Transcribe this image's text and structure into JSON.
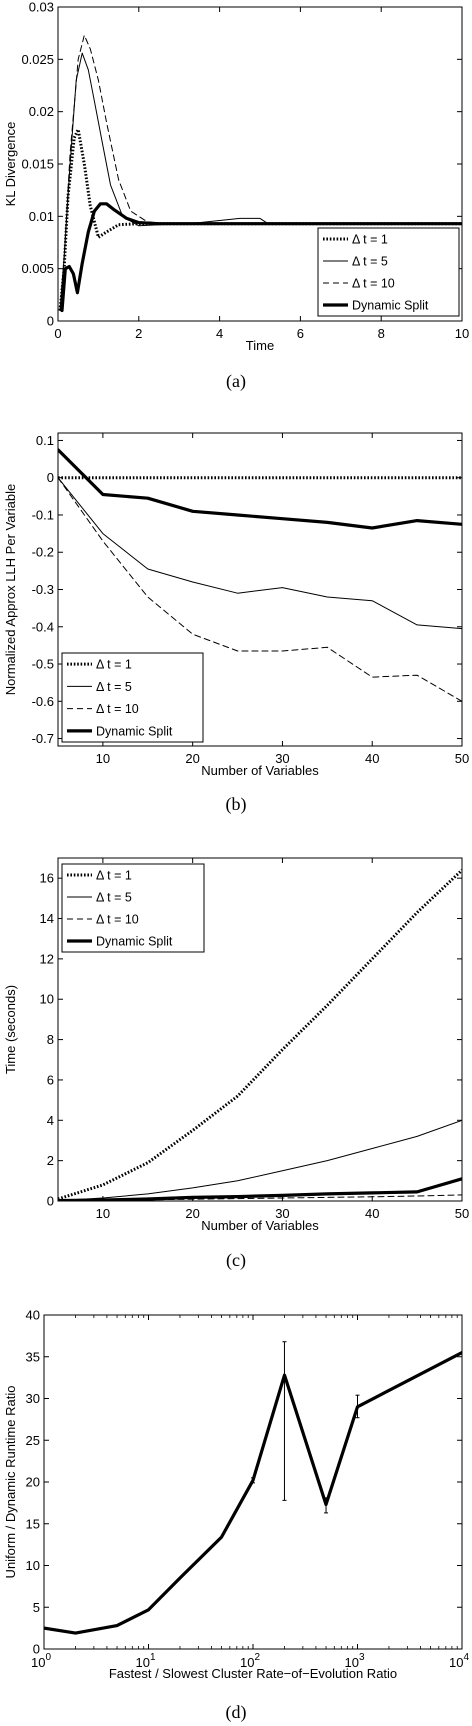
{
  "chart_data": [
    {
      "type": "line",
      "caption": "(a)",
      "xlabel": "Time",
      "ylabel": "KL Divergence",
      "xlim": [
        0,
        10
      ],
      "ylim": [
        0,
        0.03
      ],
      "xticks": [
        0,
        2,
        4,
        6,
        8,
        10
      ],
      "xticklabels": [
        "0",
        "2",
        "4",
        "6",
        "8",
        "10"
      ],
      "yticks": [
        0,
        0.005,
        0.01,
        0.015,
        0.02,
        0.025,
        0.03
      ],
      "yticklabels": [
        "0",
        "0.005",
        "0.01",
        "0.015",
        "0.02",
        "0.025",
        "0.03"
      ],
      "xscale": "linear",
      "legend": "bottom-right",
      "series": [
        {
          "name": "Δ t = 1",
          "style": "dotted",
          "width": 3,
          "x": [
            0.05,
            0.15,
            0.25,
            0.4,
            0.5,
            0.65,
            0.8,
            1.0,
            1.2,
            1.5,
            2.0,
            2.5,
            3.0,
            10
          ],
          "y": [
            0.001,
            0.005,
            0.012,
            0.0175,
            0.0183,
            0.015,
            0.011,
            0.008,
            0.0085,
            0.0092,
            0.0093,
            0.0093,
            0.0093,
            0.0093
          ]
        },
        {
          "name": "Δ t = 5",
          "style": "solid",
          "width": 1,
          "x": [
            0.05,
            0.15,
            0.3,
            0.45,
            0.6,
            0.75,
            0.9,
            1.1,
            1.3,
            1.6,
            2.0,
            2.5,
            3.0,
            3.5,
            4.0,
            4.5,
            5.0,
            5.2,
            6,
            10
          ],
          "y": [
            0.001,
            0.006,
            0.015,
            0.023,
            0.0256,
            0.024,
            0.021,
            0.017,
            0.013,
            0.01,
            0.0091,
            0.0092,
            0.0093,
            0.0094,
            0.0096,
            0.0098,
            0.0098,
            0.0093,
            0.0093,
            0.0093
          ]
        },
        {
          "name": "Δ t = 10",
          "style": "dashed",
          "width": 1,
          "x": [
            0.05,
            0.15,
            0.3,
            0.5,
            0.65,
            0.8,
            1.0,
            1.2,
            1.5,
            1.8,
            2.2,
            2.6,
            3.0,
            10
          ],
          "y": [
            0.001,
            0.006,
            0.016,
            0.025,
            0.0273,
            0.026,
            0.023,
            0.019,
            0.0135,
            0.0105,
            0.0095,
            0.0093,
            0.0093,
            0.0093
          ]
        },
        {
          "name": "Dynamic Split",
          "style": "solid",
          "width": 3.2,
          "x": [
            0.1,
            0.18,
            0.28,
            0.38,
            0.48,
            0.6,
            0.75,
            0.9,
            1.05,
            1.2,
            1.4,
            1.7,
            2.0,
            2.5,
            3.0,
            10
          ],
          "y": [
            0.001,
            0.005,
            0.0052,
            0.0045,
            0.0027,
            0.0055,
            0.0085,
            0.0105,
            0.0112,
            0.0112,
            0.0106,
            0.0098,
            0.0094,
            0.0093,
            0.0093,
            0.0093
          ]
        }
      ]
    },
    {
      "type": "line",
      "caption": "(b)",
      "xlabel": "Number of Variables",
      "ylabel": "Normalized Approx LLH Per Variable",
      "xlim": [
        5,
        50
      ],
      "ylim": [
        -0.72,
        0.12
      ],
      "xticks": [
        10,
        20,
        30,
        40,
        50
      ],
      "xticklabels": [
        "10",
        "20",
        "30",
        "40",
        "50"
      ],
      "yticks": [
        0.1,
        0,
        -0.1,
        -0.2,
        -0.3,
        -0.4,
        -0.5,
        -0.6,
        -0.7
      ],
      "yticklabels": [
        "0.1",
        "0",
        "-0.1",
        "-0.2",
        "-0.3",
        "-0.4",
        "-0.5",
        "-0.6",
        "-0.7"
      ],
      "xscale": "linear",
      "legend": "bottom-left",
      "series": [
        {
          "name": "Δ t = 1",
          "style": "dotted",
          "width": 3,
          "x": [
            5,
            50
          ],
          "y": [
            0,
            0
          ]
        },
        {
          "name": "Δ t = 5",
          "style": "solid",
          "width": 1,
          "x": [
            5,
            10,
            15,
            20,
            25,
            30,
            35,
            40,
            45,
            50
          ],
          "y": [
            0,
            -0.15,
            -0.245,
            -0.28,
            -0.31,
            -0.295,
            -0.32,
            -0.33,
            -0.395,
            -0.405
          ]
        },
        {
          "name": "Δ t = 10",
          "style": "dashed",
          "width": 1,
          "x": [
            5,
            10,
            15,
            20,
            25,
            30,
            35,
            40,
            45,
            50
          ],
          "y": [
            0,
            -0.17,
            -0.32,
            -0.42,
            -0.465,
            -0.465,
            -0.455,
            -0.535,
            -0.53,
            -0.6
          ]
        },
        {
          "name": "Dynamic Split",
          "style": "solid",
          "width": 3.2,
          "x": [
            5,
            10,
            15,
            20,
            25,
            30,
            35,
            40,
            45,
            50
          ],
          "y": [
            0.075,
            -0.045,
            -0.055,
            -0.09,
            -0.1,
            -0.11,
            -0.12,
            -0.135,
            -0.115,
            -0.125
          ]
        }
      ]
    },
    {
      "type": "line",
      "caption": "(c)",
      "xlabel": "Number of Variables",
      "ylabel": "Time (seconds)",
      "xlim": [
        5,
        50
      ],
      "ylim": [
        0,
        17
      ],
      "xticks": [
        10,
        20,
        30,
        40,
        50
      ],
      "xticklabels": [
        "10",
        "20",
        "30",
        "40",
        "50"
      ],
      "yticks": [
        0,
        2,
        4,
        6,
        8,
        10,
        12,
        14,
        16
      ],
      "yticklabels": [
        "0",
        "2",
        "4",
        "6",
        "8",
        "10",
        "12",
        "14",
        "16"
      ],
      "xscale": "linear",
      "legend": "top-left",
      "series": [
        {
          "name": "Δ t = 1",
          "style": "dotted",
          "width": 3,
          "x": [
            5,
            10,
            15,
            20,
            25,
            30,
            35,
            40,
            45,
            50
          ],
          "y": [
            0.1,
            0.8,
            1.9,
            3.5,
            5.2,
            7.5,
            9.7,
            12.0,
            14.3,
            16.4
          ]
        },
        {
          "name": "Δ t = 5",
          "style": "solid",
          "width": 1,
          "x": [
            5,
            10,
            15,
            20,
            25,
            30,
            35,
            40,
            45,
            50
          ],
          "y": [
            0.02,
            0.15,
            0.35,
            0.65,
            1.0,
            1.5,
            2.0,
            2.6,
            3.2,
            4.0
          ]
        },
        {
          "name": "Δ t = 10",
          "style": "dashed",
          "width": 1,
          "x": [
            5,
            10,
            15,
            20,
            25,
            30,
            35,
            40,
            45,
            50
          ],
          "y": [
            0.01,
            0.03,
            0.06,
            0.09,
            0.12,
            0.15,
            0.18,
            0.21,
            0.25,
            0.3
          ]
        },
        {
          "name": "Dynamic Split",
          "style": "solid",
          "width": 3.2,
          "x": [
            5,
            10,
            15,
            20,
            25,
            30,
            35,
            40,
            45,
            50
          ],
          "y": [
            0.02,
            0.05,
            0.1,
            0.18,
            0.22,
            0.28,
            0.35,
            0.4,
            0.45,
            1.1
          ]
        }
      ]
    },
    {
      "type": "line",
      "caption": "(d)",
      "xlabel": "Fastest / Slowest Cluster Rate−of−Evolution Ratio",
      "ylabel": "Uniform / Dynamic Runtime Ratio",
      "xlim": [
        1,
        10000
      ],
      "ylim": [
        0,
        40
      ],
      "xscale": "log",
      "xticks": [
        1,
        10,
        100,
        1000,
        10000
      ],
      "xtick_exponents": [
        "0",
        "1",
        "2",
        "3",
        "4"
      ],
      "xtick_base": "10",
      "yticks": [
        0,
        5,
        10,
        15,
        20,
        25,
        30,
        35,
        40
      ],
      "yticklabels": [
        "0",
        "5",
        "10",
        "15",
        "20",
        "25",
        "30",
        "35",
        "40"
      ],
      "legend": "none",
      "series": [
        {
          "style": "solid",
          "width": 3.2,
          "x": [
            1,
            2,
            5,
            10,
            20,
            50,
            100,
            200,
            500,
            1000,
            10000
          ],
          "y": [
            2.5,
            1.9,
            2.8,
            4.7,
            8.5,
            13.4,
            20.2,
            32.8,
            17.3,
            29.0,
            35.5
          ],
          "err_low": [
            0,
            0,
            0,
            0,
            0,
            0,
            0.3,
            15.0,
            1.0,
            1.3,
            0
          ],
          "err_high": [
            0,
            0,
            0,
            0,
            0,
            0,
            0.3,
            4.0,
            0.8,
            1.4,
            0
          ]
        }
      ]
    }
  ]
}
